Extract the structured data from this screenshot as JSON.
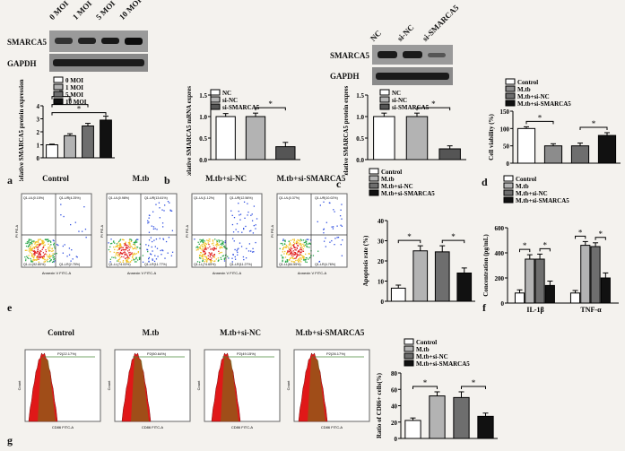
{
  "western_a": {
    "lanes": [
      "0 MOI",
      "1 MOI",
      "5 MOI",
      "10 MOI"
    ],
    "row1": "SMARCA5",
    "row2": "GAPDH"
  },
  "western_c": {
    "lanes": [
      "NC",
      "si-NC",
      "si-SMARCA5"
    ],
    "row1": "SMARCA5",
    "row2": "GAPDH"
  },
  "panel_letters": {
    "a": "a",
    "b": "b",
    "c": "c",
    "d": "d",
    "e": "e",
    "f": "f",
    "g": "g"
  },
  "flow_e": {
    "titles": [
      "Control",
      "M.tb",
      "M.tb+si-NC",
      "M.tb+si-SMARCA5"
    ],
    "axis_x": "Annexin V FITC-A",
    "axis_y": "PI PE-A",
    "quadrants": [
      [
        "Q1-UL(0.15%)",
        "Q1-UR(4.25%)",
        "Q1-LL(92.80%)",
        "Q1-LR(2.75%)"
      ],
      [
        "Q1-UL(0.98%)",
        "Q1-UR(13.61%)",
        "Q1-LL(74.03%)",
        "Q1-LR(11.77%)"
      ],
      [
        "Q1-UL(1.12%)",
        "Q1-UR(12.56%)",
        "Q1-LL(74.65%)",
        "Q1-LR(11.27%)"
      ],
      [
        "Q1-UL(0.37%)",
        "Q1-UR(10.02%)",
        "Q1-LL(84.55%)",
        "Q1-LR(4.76%)"
      ]
    ]
  },
  "flow_g": {
    "titles": [
      "Control",
      "M.tb",
      "M.tb+si-NC",
      "M.tb+si-SMARCA5"
    ],
    "gates": [
      "P2(22.17%)",
      "P2(50.64%)",
      "P2(49.15%)",
      "P2(26.17%)"
    ],
    "axis_x": "CD86 FITC-A",
    "axis_y": "Count"
  },
  "chart_data": [
    {
      "id": "a",
      "type": "bar",
      "categories": [
        "0 MOI",
        "1 MOI",
        "5 MOI",
        "10 MOI"
      ],
      "values": [
        1.0,
        1.7,
        2.45,
        2.9
      ],
      "errors": [
        0.05,
        0.15,
        0.2,
        0.3
      ],
      "ylabel": "Relative SMARCA5 protein expression",
      "ylim": [
        0,
        4
      ],
      "yticks": [
        "0",
        "1",
        "2",
        "3",
        "4"
      ],
      "legend": [
        "0 MOI",
        "1 MOI",
        "5 MOI",
        "10 MOI"
      ],
      "colors": [
        "#ffffff",
        "#b3b3b3",
        "#6e6e6e",
        "#111111"
      ],
      "sig": [
        "*",
        "*",
        "*"
      ]
    },
    {
      "id": "b",
      "type": "bar",
      "categories": [
        "NC",
        "si-NC",
        "si-SMARCA5"
      ],
      "values": [
        1.0,
        1.0,
        0.3
      ],
      "errors": [
        0.07,
        0.08,
        0.1
      ],
      "ylabel": "Relative SMARCA5 mRNA expression",
      "ylim": [
        0,
        1.5
      ],
      "yticks": [
        "0.0",
        "0.5",
        "1.0",
        "1.5"
      ],
      "legend": [
        "NC",
        "si-NC",
        "si-SMARCA5"
      ],
      "colors": [
        "#ffffff",
        "#b3b3b3",
        "#555555"
      ],
      "sig": [
        "*"
      ]
    },
    {
      "id": "c",
      "type": "bar",
      "categories": [
        "NC",
        "si-NC",
        "si-SMARCA5"
      ],
      "values": [
        1.0,
        1.0,
        0.25
      ],
      "errors": [
        0.08,
        0.08,
        0.07
      ],
      "ylabel": "Relative SMARCA5 protein expression",
      "ylim": [
        0,
        1.5
      ],
      "yticks": [
        "0.0",
        "0.5",
        "1.0",
        "1.5"
      ],
      "legend": [
        "NC",
        "si-NC",
        "si-SMARCA5"
      ],
      "colors": [
        "#ffffff",
        "#b3b3b3",
        "#555555"
      ],
      "sig": [
        "*"
      ]
    },
    {
      "id": "d",
      "type": "bar",
      "categories": [
        "Control",
        "M.tb",
        "M.tb+si-NC",
        "M.tb+si-SMARCA5"
      ],
      "values": [
        100,
        50,
        50,
        80
      ],
      "errors": [
        5,
        6,
        8,
        8
      ],
      "ylabel": "Cell viability (%)",
      "ylim": [
        0,
        150
      ],
      "yticks": [
        "0",
        "50",
        "100",
        "150"
      ],
      "legend": [
        "Control",
        "M.tb",
        "M.tb+si-NC",
        "M.tb+si-SMARCA5"
      ],
      "colors": [
        "#ffffff",
        "#8c8c8c",
        "#6e6e6e",
        "#111111"
      ],
      "sig": [
        "*",
        "*"
      ]
    },
    {
      "id": "e",
      "type": "bar",
      "categories": [
        "Control",
        "M.tb",
        "M.tb+si-NC",
        "M.tb+si-SMARCA5"
      ],
      "values": [
        6.5,
        25,
        24.5,
        14
      ],
      "errors": [
        1.5,
        2.5,
        3,
        2.5
      ],
      "ylabel": "Apoptosis rate (%)",
      "ylim": [
        0,
        40
      ],
      "yticks": [
        "0",
        "10",
        "20",
        "30",
        "40"
      ],
      "legend": [
        "Control",
        "M.tb",
        "M.tb+si-NC",
        "M.tb+si-SMARCA5"
      ],
      "colors": [
        "#ffffff",
        "#b3b3b3",
        "#6e6e6e",
        "#111111"
      ],
      "sig": [
        "*",
        "*"
      ]
    },
    {
      "id": "f",
      "type": "bar",
      "categories": [
        "IL-1β",
        "TNF-α"
      ],
      "series": [
        {
          "name": "Control",
          "values": [
            80,
            80
          ],
          "errors": [
            25,
            20
          ]
        },
        {
          "name": "M.tb",
          "values": [
            350,
            460
          ],
          "errors": [
            35,
            30
          ]
        },
        {
          "name": "M.tb+si-NC",
          "values": [
            350,
            450
          ],
          "errors": [
            40,
            30
          ]
        },
        {
          "name": "M.tb+si-SMARCA5",
          "values": [
            140,
            200
          ],
          "errors": [
            35,
            40
          ]
        }
      ],
      "ylabel": "Concentration (pg/mL)",
      "ylim": [
        0,
        600
      ],
      "yticks": [
        "0",
        "200",
        "400",
        "600"
      ],
      "colors": [
        "#ffffff",
        "#b3b3b3",
        "#6e6e6e",
        "#111111"
      ],
      "sig": [
        "*",
        "*",
        "*",
        "*"
      ]
    },
    {
      "id": "g",
      "type": "bar",
      "categories": [
        "Control",
        "M.tb",
        "M.tb+si-NC",
        "M.tb+si-SMARCA5"
      ],
      "values": [
        22,
        52,
        50,
        27
      ],
      "errors": [
        3,
        5,
        7,
        4
      ],
      "ylabel": "Ratio of CD86+ cells(%)",
      "ylim": [
        0,
        80
      ],
      "yticks": [
        "0",
        "20",
        "40",
        "60",
        "80"
      ],
      "legend": [
        "Control",
        "M.tb",
        "M.tb+si-NC",
        "M.tb+si-SMARCA5"
      ],
      "colors": [
        "#ffffff",
        "#b3b3b3",
        "#6e6e6e",
        "#111111"
      ],
      "sig": [
        "*",
        "*"
      ]
    }
  ]
}
